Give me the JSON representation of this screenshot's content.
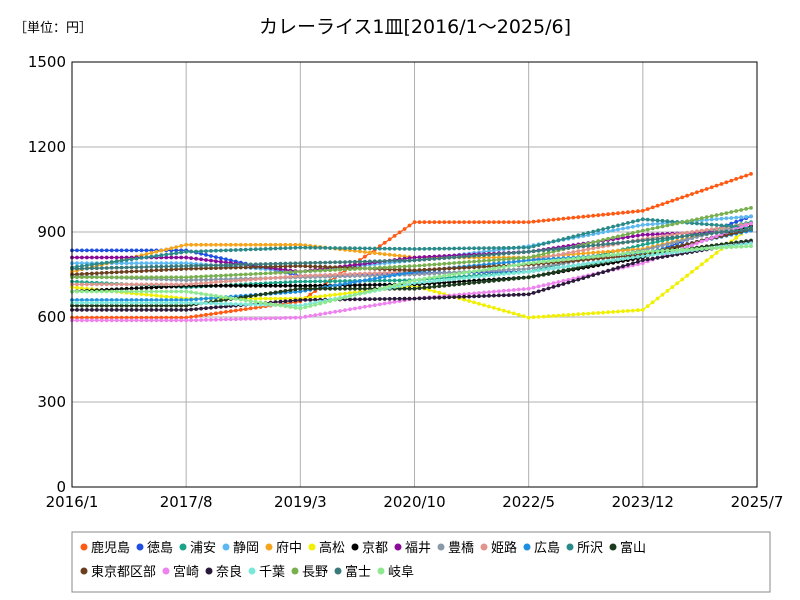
{
  "chart_data": {
    "type": "line",
    "title": "カレーライス1皿[2016/1～2025/6]",
    "unit_label": "［単位：円］",
    "ylim": [
      0,
      1500
    ],
    "yticks": [
      0,
      300,
      600,
      900,
      1200,
      1500
    ],
    "xticks": [
      "2016/1",
      "2017/8",
      "2019/3",
      "2020/10",
      "2022/5",
      "2023/12",
      "2025/7"
    ],
    "grid": true,
    "legend_position": "bottom",
    "x": [
      "2016/1",
      "2017/8",
      "2019/3",
      "2020/10",
      "2022/5",
      "2023/12",
      "2025/6"
    ],
    "series": [
      {
        "name": "鹿児島",
        "color": "#ff5a14",
        "values": [
          598,
          598,
          655,
          935,
          935,
          975,
          1105
        ]
      },
      {
        "name": "徳島",
        "color": "#1f4fe0",
        "values": [
          835,
          835,
          745,
          755,
          760,
          815,
          955
        ]
      },
      {
        "name": "浦安",
        "color": "#1aa389",
        "values": [
          725,
          705,
          725,
          730,
          760,
          855,
          935
        ]
      },
      {
        "name": "静岡",
        "color": "#5bb8f0",
        "values": [
          790,
          790,
          760,
          800,
          850,
          925,
          955
        ]
      },
      {
        "name": "府中",
        "color": "#f5a41c",
        "values": [
          760,
          855,
          855,
          810,
          810,
          840,
          930
        ]
      },
      {
        "name": "高松",
        "color": "#f0f000",
        "values": [
          705,
          665,
          665,
          710,
          598,
          625,
          920
        ]
      },
      {
        "name": "京都",
        "color": "#000000",
        "values": [
          690,
          710,
          710,
          715,
          740,
          810,
          920
        ]
      },
      {
        "name": "福井",
        "color": "#8a0a9a",
        "values": [
          810,
          810,
          760,
          810,
          830,
          890,
          905
        ]
      },
      {
        "name": "豊橋",
        "color": "#8a99a8",
        "values": [
          745,
          730,
          740,
          750,
          770,
          835,
          930
        ]
      },
      {
        "name": "姫路",
        "color": "#e0948c",
        "values": [
          715,
          715,
          745,
          760,
          800,
          875,
          930
        ]
      },
      {
        "name": "広島",
        "color": "#1e8fe0",
        "values": [
          660,
          660,
          690,
          760,
          800,
          825,
          905
        ]
      },
      {
        "name": "所沢",
        "color": "#2a8a8a",
        "values": [
          775,
          830,
          845,
          840,
          845,
          945,
          915
        ]
      },
      {
        "name": "富山",
        "color": "#1c3a1c",
        "values": [
          640,
          640,
          700,
          700,
          740,
          820,
          870
        ]
      },
      {
        "name": "東京都区部",
        "color": "#6b3e1e",
        "values": [
          750,
          770,
          780,
          765,
          785,
          820,
          910
        ]
      },
      {
        "name": "宮崎",
        "color": "#ee82ee",
        "values": [
          588,
          588,
          598,
          665,
          700,
          790,
          930
        ]
      },
      {
        "name": "奈良",
        "color": "#2a1a3a",
        "values": [
          625,
          625,
          660,
          665,
          680,
          800,
          865
        ]
      },
      {
        "name": "千葉",
        "color": "#7ae8d8",
        "values": [
          650,
          650,
          640,
          720,
          760,
          815,
          860
        ]
      },
      {
        "name": "長野",
        "color": "#78b050",
        "values": [
          740,
          740,
          760,
          780,
          810,
          905,
          985
        ]
      },
      {
        "name": "富士",
        "color": "#3a7a7a",
        "values": [
          770,
          780,
          790,
          800,
          830,
          870,
          910
        ]
      },
      {
        "name": "岐阜",
        "color": "#8ee88e",
        "values": [
          690,
          690,
          630,
          730,
          790,
          830,
          850
        ]
      }
    ]
  }
}
